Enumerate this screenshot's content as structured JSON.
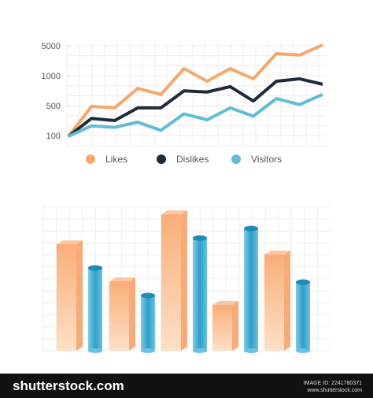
{
  "chart_data": [
    {
      "type": "line",
      "categories": [
        null,
        null,
        null,
        null,
        null,
        null,
        null,
        null,
        null,
        null,
        null,
        null
      ],
      "series": [
        {
          "name": "Likes",
          "color": "#f5a86e",
          "values": [
            100,
            500,
            480,
            800,
            700,
            2050,
            920,
            2050,
            960,
            4050,
            3850,
            5200
          ]
        },
        {
          "name": "Dislikes",
          "color": "#1f2b3b",
          "values": [
            100,
            340,
            310,
            480,
            480,
            760,
            740,
            830,
            590,
            920,
            960,
            870
          ]
        },
        {
          "name": "Visitors",
          "color": "#62bcd6",
          "values": [
            100,
            240,
            220,
            290,
            180,
            400,
            320,
            480,
            370,
            630,
            530,
            700
          ]
        }
      ],
      "ylim": [
        100,
        5500
      ],
      "yticks": [
        100,
        500,
        1000,
        5000
      ],
      "grid": true,
      "legend": "bottom"
    },
    {
      "type": "bar3d",
      "categories": [
        null,
        null,
        null,
        null,
        null
      ],
      "series": [
        {
          "name": null,
          "color": "#f9b37e",
          "values": [
            135,
            88,
            173,
            58,
            122
          ]
        },
        {
          "name": null,
          "color": "#3aa3cb",
          "values": [
            105,
            70,
            143,
            155,
            87
          ]
        }
      ],
      "ylim": [
        0,
        180
      ],
      "grid": true
    }
  ],
  "footer": {
    "brand": "shutterstock.com",
    "image_id": "IMAGE ID: 2241780371",
    "site": "www.shutterstock.com"
  }
}
